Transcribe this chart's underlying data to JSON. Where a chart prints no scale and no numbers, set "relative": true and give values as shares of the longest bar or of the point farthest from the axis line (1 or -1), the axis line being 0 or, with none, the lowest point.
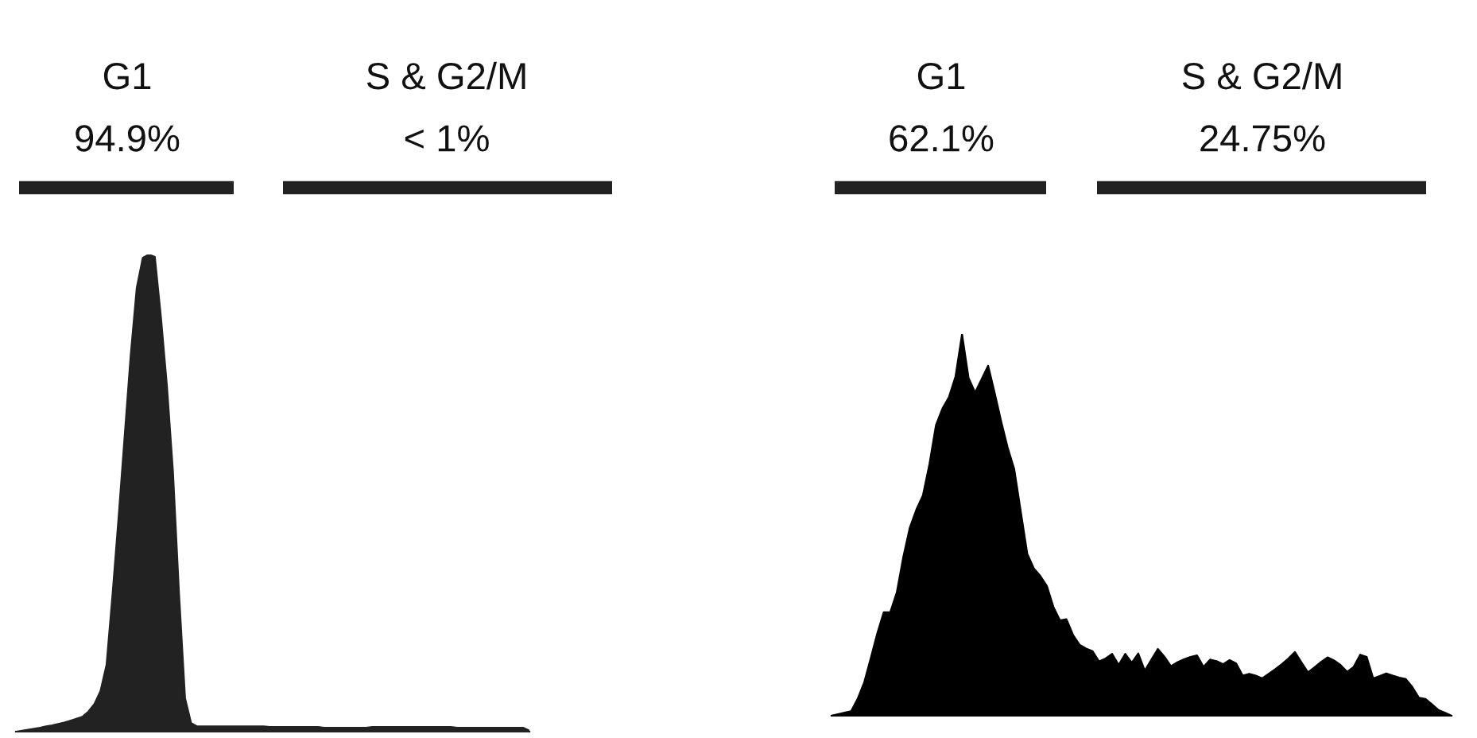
{
  "chart_data": [
    {
      "type": "area",
      "relative": true,
      "color": "#222222",
      "categories": [
        null,
        null,
        null,
        null,
        null,
        null,
        null,
        null,
        null,
        null,
        null,
        null,
        null,
        null,
        null,
        null,
        null,
        null,
        null,
        null,
        null,
        null,
        null,
        null,
        null,
        null,
        null,
        null,
        null,
        null,
        null,
        null,
        null,
        null,
        null,
        null,
        null,
        null,
        null,
        null,
        null,
        null,
        null,
        null,
        null,
        null,
        null,
        null,
        null,
        null,
        null,
        null,
        null,
        null,
        null,
        null,
        null,
        null,
        null,
        null,
        null,
        null,
        null,
        null,
        null,
        null,
        null,
        null,
        null,
        null,
        null,
        null,
        null,
        null,
        null,
        null,
        null,
        null,
        null,
        null,
        null,
        null,
        null,
        null,
        null,
        null
      ],
      "values": [
        0,
        0.002,
        0.004,
        0.006,
        0.008,
        0.011,
        0.013,
        0.016,
        0.019,
        0.023,
        0.027,
        0.031,
        0.042,
        0.058,
        0.085,
        0.14,
        0.289,
        0.45,
        0.62,
        0.789,
        0.93,
        0.993,
        1.0,
        0.995,
        0.87,
        0.725,
        0.545,
        0.29,
        0.07,
        0.018,
        0.011,
        0.011,
        0.011,
        0.011,
        0.011,
        0.011,
        0.011,
        0.011,
        0.011,
        0.011,
        0.011,
        0.011,
        0.01,
        0.01,
        0.01,
        0.01,
        0.01,
        0.01,
        0.01,
        0.01,
        0.01,
        0.008,
        0.008,
        0.008,
        0.008,
        0.008,
        0.008,
        0.008,
        0.008,
        0.01,
        0.01,
        0.01,
        0.01,
        0.01,
        0.01,
        0.01,
        0.01,
        0.01,
        0.01,
        0.01,
        0.01,
        0.01,
        0.01,
        0.008,
        0.008,
        0.008,
        0.008,
        0.008,
        0.008,
        0.008,
        0.008,
        0.008,
        0.008,
        0.008,
        0.008,
        0.002
      ],
      "annotations": [
        "G1\n94.9%",
        "S & G2/M\n< 1%"
      ]
    },
    {
      "type": "area",
      "relative": true,
      "color": "#000000",
      "categories": [
        null,
        null,
        null,
        null,
        null,
        null,
        null,
        null,
        null,
        null,
        null,
        null,
        null,
        null,
        null,
        null,
        null,
        null,
        null,
        null,
        null,
        null,
        null,
        null,
        null,
        null,
        null,
        null,
        null,
        null,
        null,
        null,
        null,
        null,
        null,
        null,
        null,
        null,
        null,
        null,
        null,
        null,
        null,
        null,
        null,
        null,
        null,
        null,
        null,
        null,
        null,
        null,
        null,
        null,
        null,
        null,
        null,
        null,
        null,
        null,
        null,
        null,
        null,
        null,
        null,
        null,
        null,
        null,
        null,
        null,
        null,
        null,
        null,
        null,
        null,
        null,
        null,
        null,
        null,
        null,
        null,
        null,
        null,
        null,
        null,
        null,
        null,
        null,
        null,
        null,
        null,
        null,
        null,
        null,
        null,
        null
      ],
      "values": [
        0,
        0.004,
        0.008,
        0.012,
        0.044,
        0.087,
        0.15,
        0.215,
        0.271,
        0.271,
        0.323,
        0.416,
        0.493,
        0.54,
        0.577,
        0.659,
        0.761,
        0.805,
        0.835,
        0.889,
        1.0,
        0.885,
        0.847,
        0.882,
        0.917,
        0.846,
        0.771,
        0.702,
        0.646,
        0.535,
        0.424,
        0.386,
        0.366,
        0.34,
        0.285,
        0.25,
        0.253,
        0.212,
        0.186,
        0.176,
        0.169,
        0.142,
        0.15,
        0.162,
        0.133,
        0.162,
        0.139,
        0.163,
        0.118,
        0.147,
        0.175,
        0.155,
        0.13,
        0.14,
        0.148,
        0.154,
        0.158,
        0.128,
        0.147,
        0.143,
        0.135,
        0.146,
        0.137,
        0.105,
        0.11,
        0.105,
        0.098,
        0.11,
        0.122,
        0.135,
        0.15,
        0.167,
        0.14,
        0.114,
        0.127,
        0.141,
        0.153,
        0.145,
        0.133,
        0.115,
        0.128,
        0.16,
        0.154,
        0.098,
        0.104,
        0.111,
        0.105,
        0.1,
        0.096,
        0.075,
        0.047,
        0.044,
        0.03,
        0.015,
        0.008,
        0
      ],
      "annotations": [
        "G1\n62.1%",
        "S & G2/M\n24.75%"
      ]
    }
  ]
}
